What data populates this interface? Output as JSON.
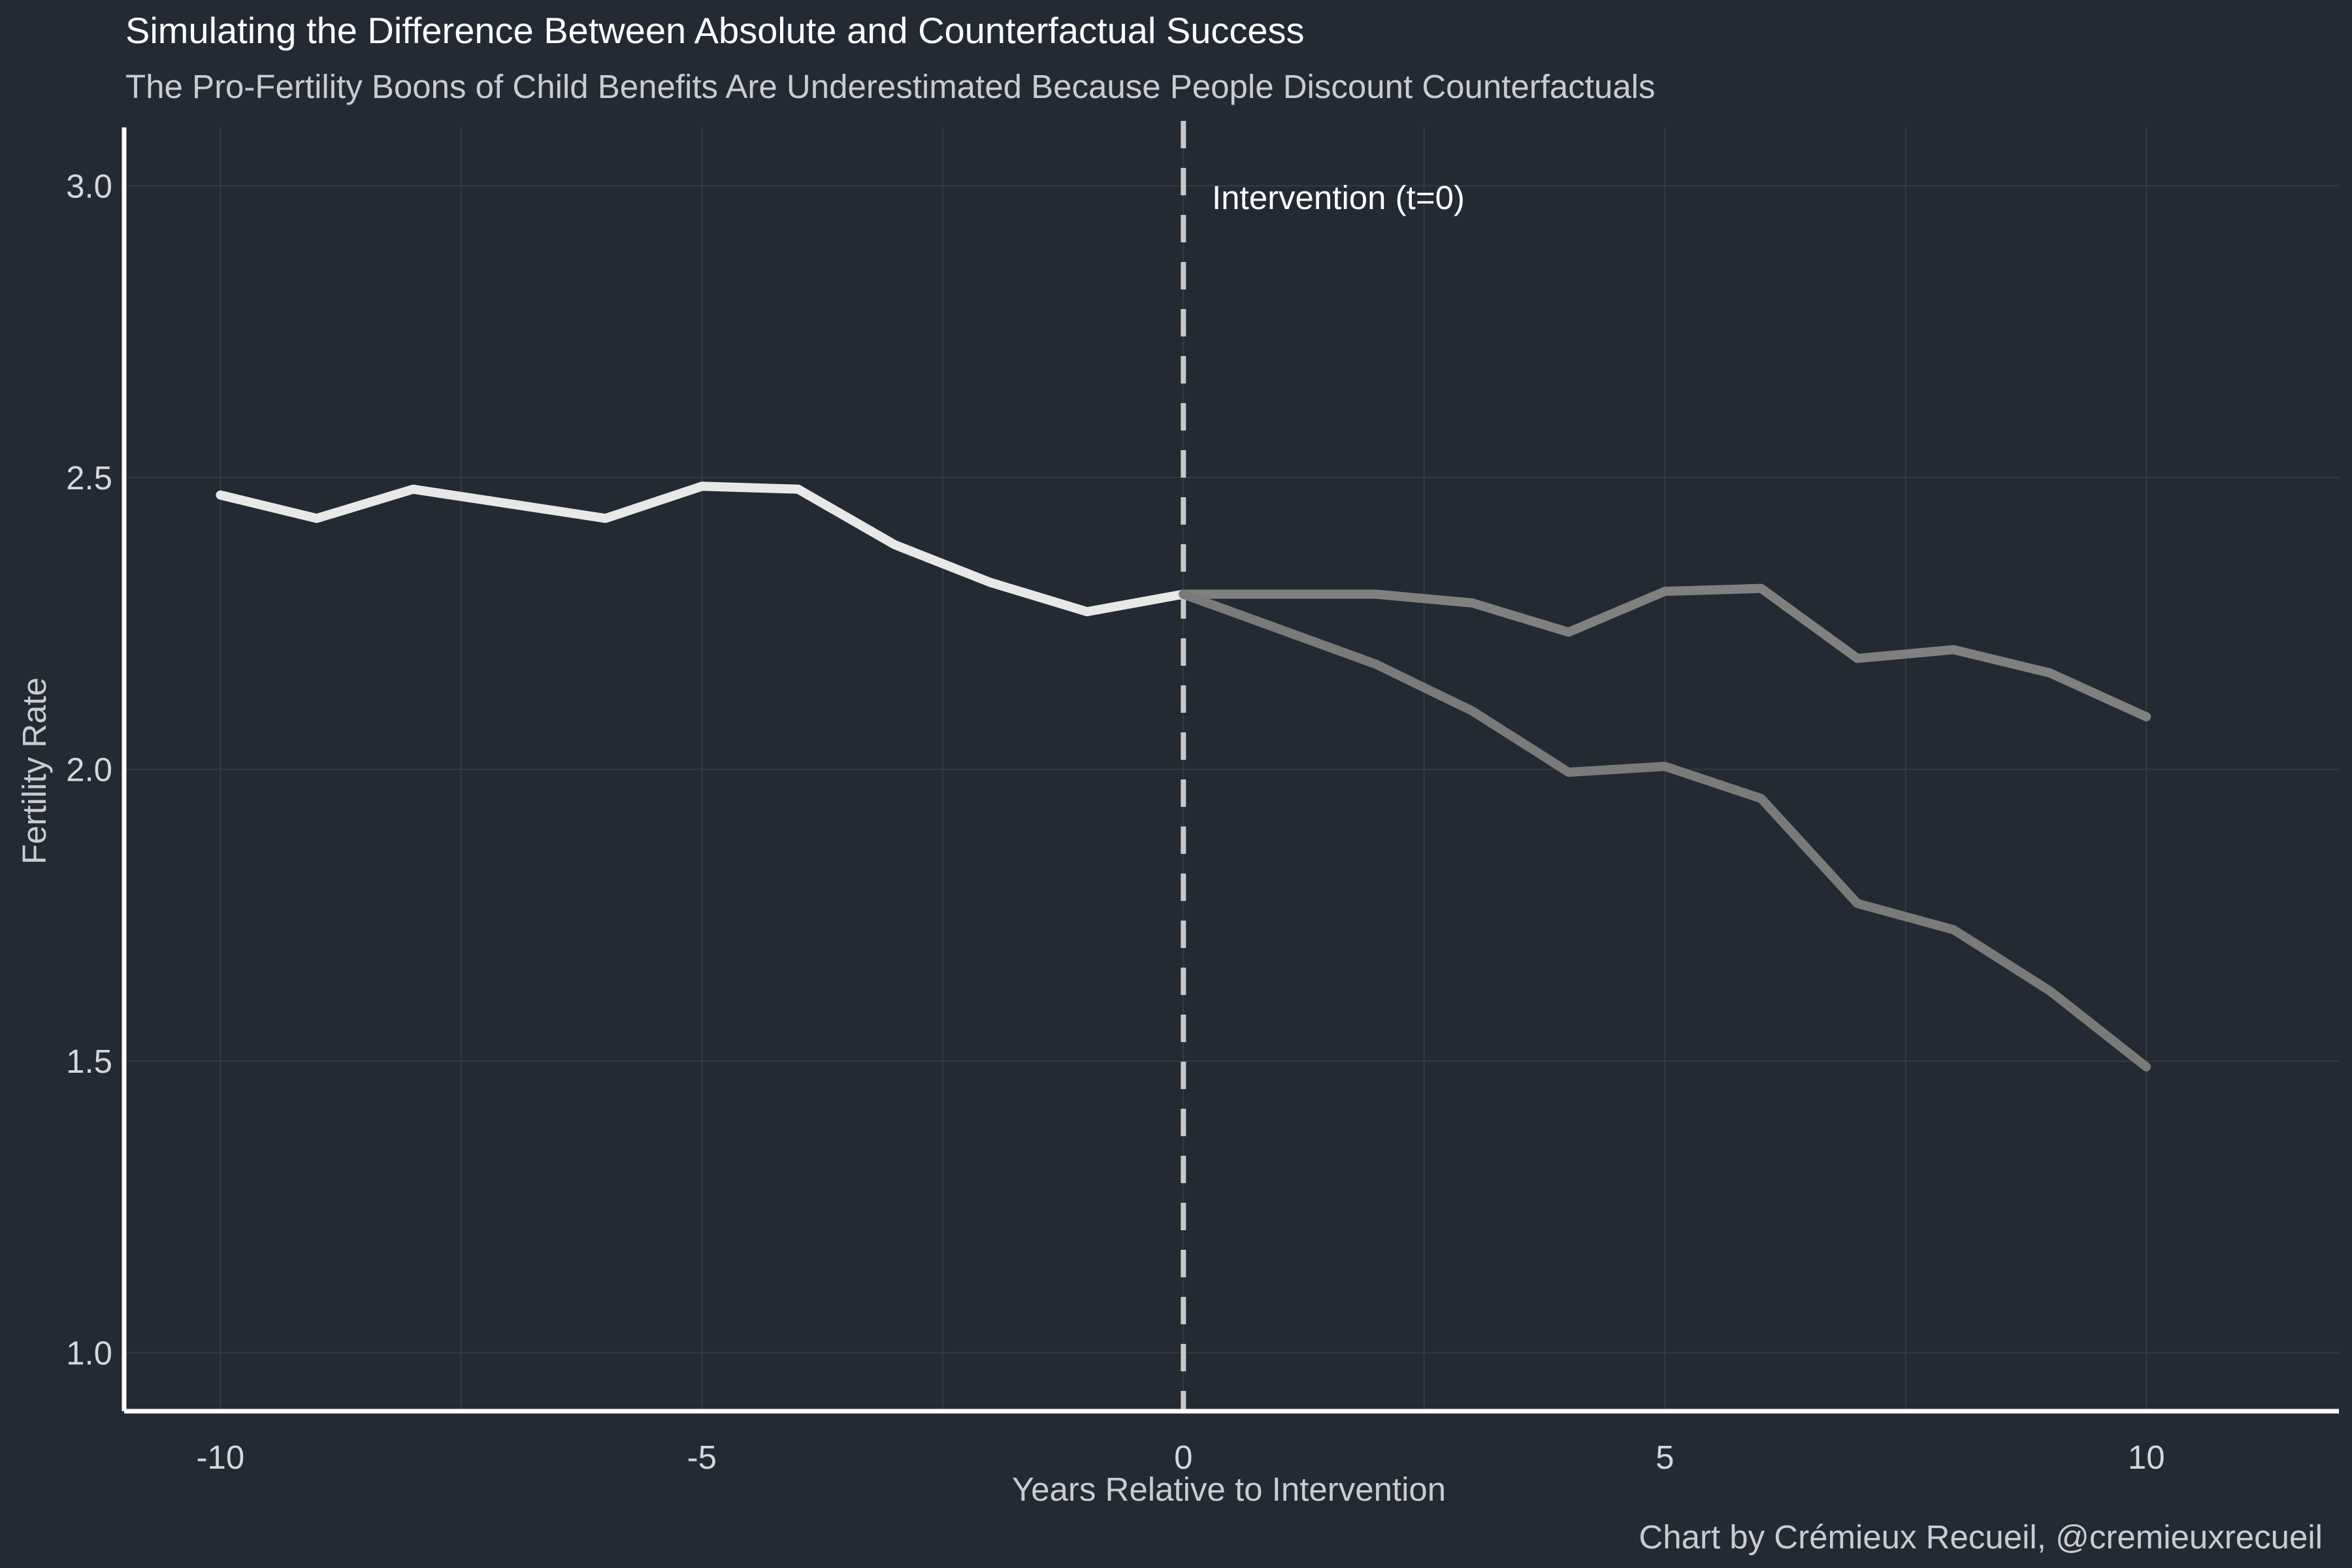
{
  "chart_data": {
    "type": "line",
    "title": "Simulating the Difference Between Absolute and Counterfactual Success",
    "subtitle": "The Pro-Fertility Boons of Child Benefits Are Underestimated Because People Discount Counterfactuals",
    "xlabel": "Years Relative to Intervention",
    "ylabel": "Fertility Rate",
    "caption": "Chart by Crémieux Recueil, @cremieuxrecueil",
    "xlim": [
      -11,
      12
    ],
    "ylim": [
      0.9,
      3.1
    ],
    "x_ticks": [
      -10,
      -5,
      0,
      5,
      10
    ],
    "x_tick_labels": [
      "-10",
      "-5",
      "0",
      "5",
      "10"
    ],
    "y_ticks": [
      1.0,
      1.5,
      2.0,
      2.5,
      3.0
    ],
    "y_tick_labels": [
      "1.0",
      "1.5",
      "2.0",
      "2.5",
      "3.0"
    ],
    "grid": true,
    "annotation": {
      "label": "Intervention (t=0)",
      "x": 0,
      "line_style": "dashed"
    },
    "series": [
      {
        "color": "#e8e8e8",
        "x": [
          -10,
          -9,
          -8,
          -7,
          -6,
          -5,
          -4,
          -3,
          -2,
          -1,
          0
        ],
        "y": [
          2.47,
          2.43,
          2.48,
          2.455,
          2.43,
          2.485,
          2.48,
          2.385,
          2.32,
          2.27,
          2.3
        ]
      },
      {
        "color": "#808080",
        "x": [
          0,
          1,
          2,
          3,
          4,
          5,
          6,
          7,
          8,
          9,
          10
        ],
        "y": [
          2.3,
          2.3,
          2.3,
          2.285,
          2.235,
          2.305,
          2.31,
          2.19,
          2.205,
          2.165,
          2.09
        ]
      },
      {
        "color": "#7a7a7a",
        "x": [
          0,
          1,
          2,
          3,
          4,
          5,
          6,
          7,
          8,
          9,
          10
        ],
        "y": [
          2.3,
          2.24,
          2.18,
          2.1,
          1.995,
          2.005,
          1.95,
          1.77,
          1.725,
          1.62,
          1.49
        ]
      }
    ]
  },
  "colors": {
    "background": "#242a33",
    "grid": "#343b45",
    "axis": "#ffffff",
    "title": "#ffffff",
    "subtitle": "#c9ccd1",
    "tick_text": "#d4d7dc",
    "marker_line": "#c8c8c8"
  }
}
